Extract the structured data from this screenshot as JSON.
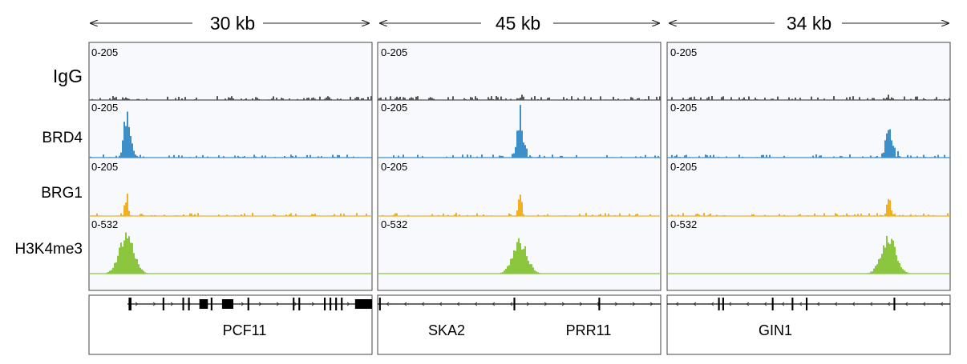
{
  "track_labels": [
    "IgG",
    "BRD4",
    "BRG1",
    "H3K4me3"
  ],
  "colors": {
    "IgG": "#555555",
    "BRD4": "#3d8fc9",
    "BRG1": "#f2b01e",
    "H3K4me3": "#8cc63f",
    "panel_bg": "#f7f9fd",
    "border": "#444444"
  },
  "panels": [
    {
      "span_label": "30 kb",
      "ranges": [
        "0-205",
        "0-205",
        "0-205",
        "0-532"
      ],
      "genes": [
        "PCF11"
      ],
      "peak_fraction": 0.13,
      "peak_heights": [
        0.12,
        0.85,
        0.45,
        0.75
      ]
    },
    {
      "span_label": "45 kb",
      "ranges": [
        "0-205",
        "0-205",
        "0-205",
        "0-532"
      ],
      "genes": [
        "SKA2",
        "PRR11"
      ],
      "peak_fraction": 0.5,
      "peak_heights": [
        0.2,
        0.85,
        0.45,
        0.6
      ]
    },
    {
      "span_label": "34 kb",
      "ranges": [
        "0-205",
        "0-205",
        "0-205",
        "0-532"
      ],
      "genes": [
        "GIN1"
      ],
      "peak_fraction": 0.78,
      "peak_heights": [
        0.12,
        0.6,
        0.45,
        0.7
      ]
    }
  ]
}
